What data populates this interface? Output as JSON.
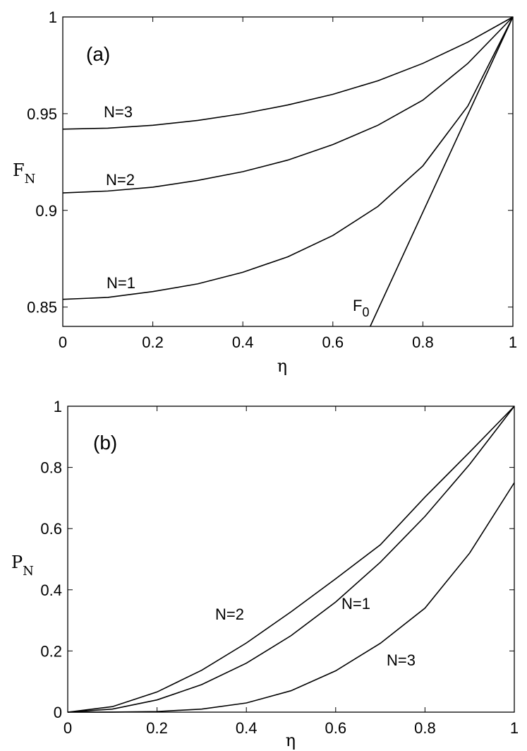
{
  "chart_data": [
    {
      "type": "line",
      "panel_label": "(a)",
      "xlabel": "η",
      "ylabel": "F",
      "ylabel_sub": "N",
      "xlim": [
        0,
        1
      ],
      "ylim": [
        0.84,
        1.0
      ],
      "xticks": [
        "0",
        "0.2",
        "0.4",
        "0.6",
        "0.8",
        "1"
      ],
      "xtick_values": [
        0,
        0.2,
        0.4,
        0.6,
        0.8,
        1
      ],
      "yticks": [
        "0.85",
        "0.9",
        "0.95",
        "1"
      ],
      "ytick_values": [
        0.85,
        0.9,
        0.95,
        1.0
      ],
      "grid": false,
      "series": [
        {
          "name": "N=3",
          "label": "N=3",
          "x": [
            0,
            0.1,
            0.2,
            0.3,
            0.4,
            0.5,
            0.6,
            0.7,
            0.8,
            0.9,
            1.0
          ],
          "y": [
            0.942,
            0.9425,
            0.944,
            0.9465,
            0.95,
            0.9545,
            0.96,
            0.967,
            0.976,
            0.987,
            1.0
          ]
        },
        {
          "name": "N=2",
          "label": "N=2",
          "x": [
            0,
            0.1,
            0.2,
            0.3,
            0.4,
            0.5,
            0.6,
            0.7,
            0.8,
            0.9,
            1.0
          ],
          "y": [
            0.909,
            0.91,
            0.912,
            0.9155,
            0.92,
            0.926,
            0.934,
            0.944,
            0.957,
            0.976,
            1.0
          ]
        },
        {
          "name": "N=1",
          "label": "N=1",
          "x": [
            0,
            0.1,
            0.2,
            0.3,
            0.4,
            0.5,
            0.6,
            0.7,
            0.8,
            0.9,
            1.0
          ],
          "y": [
            0.854,
            0.855,
            0.858,
            0.862,
            0.868,
            0.876,
            0.887,
            0.902,
            0.923,
            0.954,
            1.0
          ]
        },
        {
          "name": "F0",
          "label": "F",
          "label_sub": "0",
          "x": [
            0.683,
            1.0
          ],
          "y": [
            0.84,
            1.0
          ]
        }
      ]
    },
    {
      "type": "line",
      "panel_label": "(b)",
      "xlabel": "η",
      "ylabel": "P",
      "ylabel_sub": "N",
      "xlim": [
        0,
        1
      ],
      "ylim": [
        0,
        1
      ],
      "xticks": [
        "0",
        "0.2",
        "0.4",
        "0.6",
        "0.8",
        "1"
      ],
      "xtick_values": [
        0,
        0.2,
        0.4,
        0.6,
        0.8,
        1
      ],
      "yticks": [
        "0",
        "0.2",
        "0.4",
        "0.6",
        "0.8",
        "1"
      ],
      "ytick_values": [
        0,
        0.2,
        0.4,
        0.6,
        0.8,
        1
      ],
      "grid": false,
      "series": [
        {
          "name": "N=2",
          "label": "N=2",
          "x": [
            0,
            0.1,
            0.2,
            0.3,
            0.4,
            0.5,
            0.6,
            0.7,
            0.8,
            0.9,
            1.0
          ],
          "y": [
            0,
            0.018,
            0.066,
            0.137,
            0.226,
            0.328,
            0.436,
            0.547,
            0.703,
            0.85,
            1.0
          ]
        },
        {
          "name": "N=1",
          "label": "N=1",
          "x": [
            0,
            0.1,
            0.2,
            0.3,
            0.4,
            0.5,
            0.6,
            0.7,
            0.8,
            0.9,
            1.0
          ],
          "y": [
            0,
            0.01,
            0.04,
            0.09,
            0.16,
            0.25,
            0.36,
            0.49,
            0.64,
            0.81,
            1.0
          ]
        },
        {
          "name": "N=3",
          "label": "N=3",
          "x": [
            0,
            0.1,
            0.2,
            0.3,
            0.4,
            0.5,
            0.6,
            0.7,
            0.8,
            0.9,
            1.0
          ],
          "y": [
            0,
            0.0002,
            0.002,
            0.01,
            0.03,
            0.07,
            0.135,
            0.225,
            0.34,
            0.52,
            0.75
          ]
        }
      ]
    }
  ]
}
